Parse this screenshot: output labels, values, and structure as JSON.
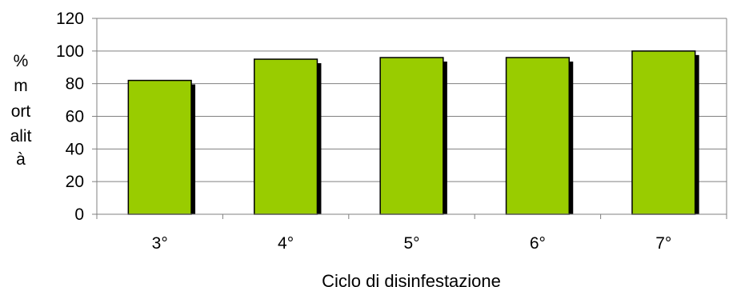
{
  "chart_data": {
    "type": "bar",
    "categories": [
      "3°",
      "4°",
      "5°",
      "6°",
      "7°"
    ],
    "values": [
      82,
      95,
      96,
      96,
      100
    ],
    "xlabel": "Ciclo di disinfestazione",
    "ylabel_lines": [
      "%",
      "m",
      "ort",
      "alit",
      "à"
    ],
    "ylim": [
      0,
      120
    ],
    "yticks": [
      0,
      20,
      40,
      60,
      80,
      100,
      120
    ],
    "grid": true,
    "legend": "none",
    "bar_color": "#99cc00",
    "shadow_color": "#000000",
    "grid_color": "#808080"
  }
}
